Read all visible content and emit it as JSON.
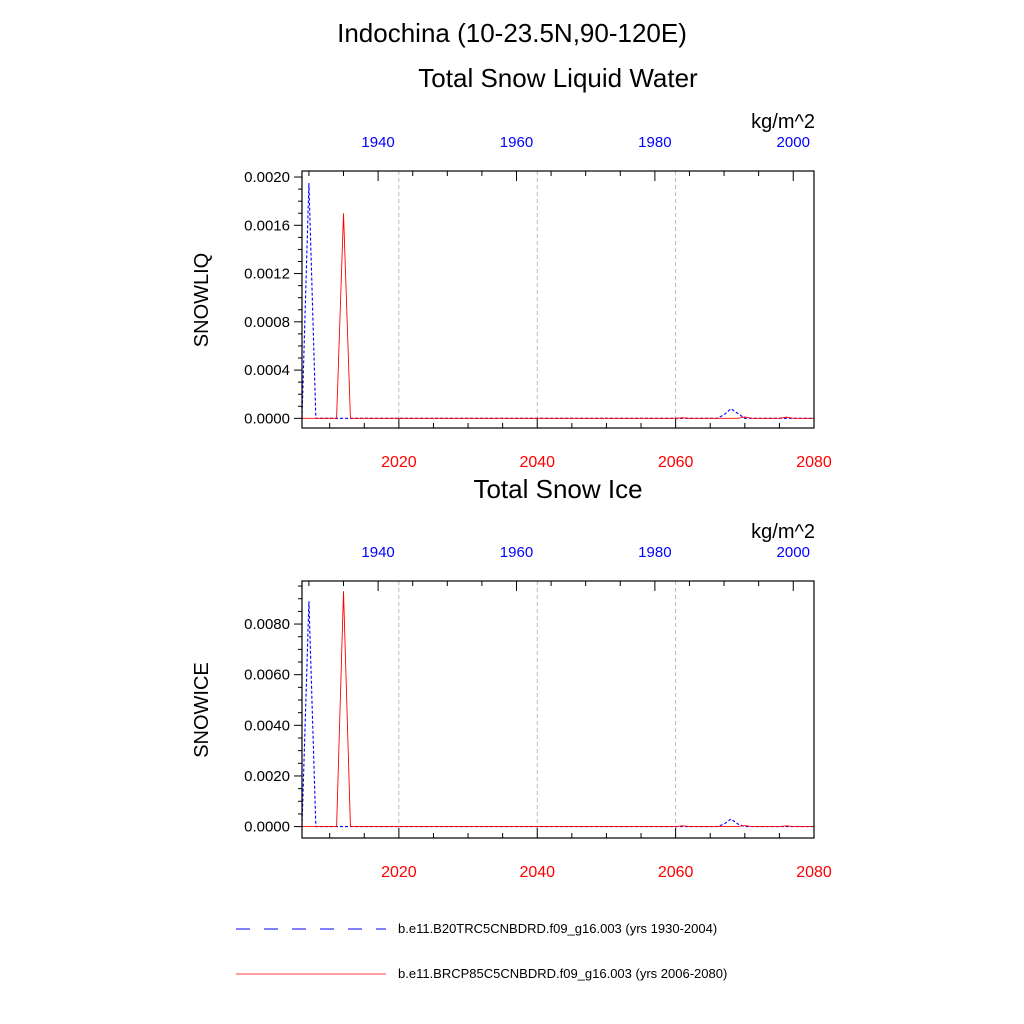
{
  "figure": {
    "title": "Indochina (10-23.5N,90-120E)",
    "colors": {
      "historical": "#0000ff",
      "future": "#ff0000",
      "frame": "#000000",
      "grid": "#aaaaaa"
    }
  },
  "chart_data": [
    {
      "type": "line",
      "title": "Total Snow Liquid Water",
      "units": "kg/m^2",
      "ylabel": "SNOWLIQ",
      "ylim": [
        -8e-05,
        0.00205
      ],
      "yticks": [
        0.0,
        0.0004,
        0.0008,
        0.0012,
        0.0016,
        0.002
      ],
      "ytick_labels": [
        "0.0000",
        "0.0004",
        "0.0008",
        "0.0012",
        "0.0016",
        "0.0020"
      ],
      "top_axis": {
        "range": [
          1929,
          2003
        ],
        "ticks": [
          1940,
          1960,
          1980,
          2000
        ],
        "labels": [
          "1940",
          "1960",
          "1980",
          "2000"
        ],
        "color": "#0000ff"
      },
      "bottom_axis": {
        "range": [
          2006,
          2080
        ],
        "ticks": [
          2020,
          2040,
          2060,
          2080
        ],
        "labels": [
          "2020",
          "2040",
          "2060",
          "2080"
        ],
        "color": "#ff0000"
      },
      "grid": "vertical dashed at bottom-axis ticks",
      "series": [
        {
          "name": "b.e11.B20TRC5CNBDRD.f09_g16.003 (yrs 1930-2004)",
          "axis": "top",
          "style": "dashed",
          "x": [
            1929,
            1930,
            1931,
            1932,
            1950,
            1980,
            1989,
            1990,
            1991,
            1992,
            1993,
            2003
          ],
          "y": [
            0.0,
            0.00195,
            0.0,
            0.0,
            0.0,
            0.0,
            0.0,
            3e-05,
            8e-05,
            4e-05,
            0.0,
            0.0
          ]
        },
        {
          "name": "b.e11.BRCP85C5CNBDRD.f09_g16.003 (yrs 2006-2080)",
          "axis": "bottom",
          "style": "solid",
          "x": [
            2006,
            2011,
            2012,
            2013,
            2014,
            2060,
            2061,
            2062,
            2069,
            2070,
            2071,
            2075,
            2076,
            2077,
            2080
          ],
          "y": [
            0.0,
            0.0,
            0.0017,
            0.0,
            0.0,
            0.0,
            5e-06,
            0.0,
            0.0,
            1.2e-05,
            0.0,
            0.0,
            1e-05,
            0.0,
            0.0
          ]
        }
      ]
    },
    {
      "type": "line",
      "title": "Total Snow Ice",
      "units": "kg/m^2",
      "ylabel": "SNOWICE",
      "ylim": [
        -0.00045,
        0.0097
      ],
      "yticks": [
        0.0,
        0.002,
        0.004,
        0.006,
        0.008
      ],
      "ytick_labels": [
        "0.0000",
        "0.0020",
        "0.0040",
        "0.0060",
        "0.0080"
      ],
      "top_axis": {
        "range": [
          1929,
          2003
        ],
        "ticks": [
          1940,
          1960,
          1980,
          2000
        ],
        "labels": [
          "1940",
          "1960",
          "1980",
          "2000"
        ],
        "color": "#0000ff"
      },
      "bottom_axis": {
        "range": [
          2006,
          2080
        ],
        "ticks": [
          2020,
          2040,
          2060,
          2080
        ],
        "labels": [
          "2020",
          "2040",
          "2060",
          "2080"
        ],
        "color": "#ff0000"
      },
      "grid": "vertical dashed at bottom-axis ticks",
      "series": [
        {
          "name": "b.e11.B20TRC5CNBDRD.f09_g16.003 (yrs 1930-2004)",
          "axis": "top",
          "style": "dashed",
          "x": [
            1929,
            1930,
            1931,
            1932,
            1950,
            1980,
            1989,
            1990,
            1991,
            1992,
            1993,
            2003
          ],
          "y": [
            0.0,
            0.0089,
            0.0,
            0.0,
            0.0,
            0.0,
            0.0,
            0.0001,
            0.0003,
            0.0001,
            0.0,
            0.0
          ]
        },
        {
          "name": "b.e11.BRCP85C5CNBDRD.f09_g16.003 (yrs 2006-2080)",
          "axis": "bottom",
          "style": "solid",
          "x": [
            2006,
            2011,
            2012,
            2013,
            2014,
            2060,
            2061,
            2062,
            2069,
            2070,
            2071,
            2075,
            2076,
            2077,
            2080
          ],
          "y": [
            0.0,
            0.0,
            0.0093,
            0.0,
            0.0,
            0.0,
            3e-05,
            0.0,
            0.0,
            4e-05,
            0.0,
            0.0,
            3e-05,
            0.0,
            0.0
          ]
        }
      ]
    }
  ],
  "legend": {
    "position": "bottom",
    "items": [
      {
        "label": "b.e11.B20TRC5CNBDRD.f09_g16.003 (yrs 1930-2004)",
        "style": "dashed",
        "color": "#0000ff"
      },
      {
        "label": "b.e11.BRCP85C5CNBDRD.f09_g16.003 (yrs 2006-2080)",
        "style": "solid",
        "color": "#ff0000"
      }
    ]
  }
}
